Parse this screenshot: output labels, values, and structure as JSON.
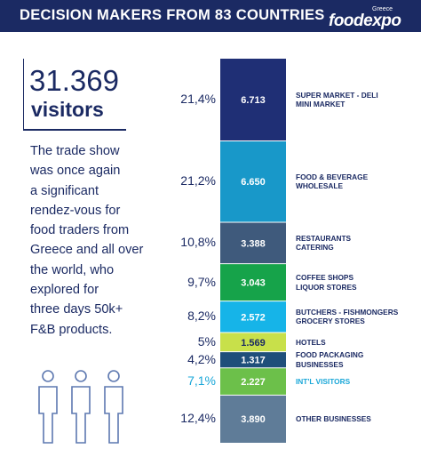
{
  "header": {
    "title": "DECISION MAKERS FROM 83 COUNTRIES"
  },
  "logo": {
    "sub": "Greece",
    "main": "foodexpo"
  },
  "headline": {
    "number": "31.369",
    "unit": "visitors"
  },
  "description": [
    "The trade show",
    "was once again",
    "a significant",
    "rendez-vous for",
    "food traders from",
    "Greece and all over",
    "the world, who",
    "explored for",
    "three days 50k+",
    "F&B products."
  ],
  "colors": {
    "navy": "#1b2a63",
    "intl_text": "#1aa7d8",
    "people_icon": "#5d78b0"
  },
  "icon": "three-people-icon",
  "chart_data": {
    "type": "bar",
    "orientation": "stacked-vertical",
    "segments": [
      {
        "label_lines": [
          "SUPER MARKET - DELI",
          "MINI MARKET"
        ],
        "percent": "21,4%",
        "value_label": "6.713",
        "value": 6713,
        "color": "#1f2f75"
      },
      {
        "label_lines": [
          "FOOD & BEVERAGE",
          "WHOLESALE"
        ],
        "percent": "21,2%",
        "value_label": "6.650",
        "value": 6650,
        "color": "#1898c9"
      },
      {
        "label_lines": [
          "RESTAURANTS",
          "CATERING"
        ],
        "percent": "10,8%",
        "value_label": "3.388",
        "value": 3388,
        "color": "#3f5a7c"
      },
      {
        "label_lines": [
          "COFFEE SHOPS",
          "LIQUOR STORES"
        ],
        "percent": "9,7%",
        "value_label": "3.043",
        "value": 3043,
        "color": "#16a34a"
      },
      {
        "label_lines": [
          "BUTCHERS - FISHMONGERS",
          "GROCERY STORES"
        ],
        "percent": "8,2%",
        "value_label": "2.572",
        "value": 2572,
        "color": "#16b4e8"
      },
      {
        "label_lines": [
          "HOTELS"
        ],
        "percent": "5%",
        "value_label": "1.569",
        "value": 1569,
        "color": "#c8e04a"
      },
      {
        "label_lines": [
          "FOOD PACKAGING",
          "BUSINESSES"
        ],
        "percent": "4,2%",
        "value_label": "1.317",
        "value": 1317,
        "color": "#1f4f7a"
      },
      {
        "label_lines": [
          "INT'L VISITORS"
        ],
        "percent": "7,1%",
        "value_label": "2.227",
        "value": 2227,
        "color": "#6cc04a",
        "highlight": true
      },
      {
        "label_lines": [
          "OTHER BUSINESSES"
        ],
        "percent": "12,4%",
        "value_label": "3.890",
        "value": 3890,
        "color": "#5f7c98"
      }
    ]
  }
}
